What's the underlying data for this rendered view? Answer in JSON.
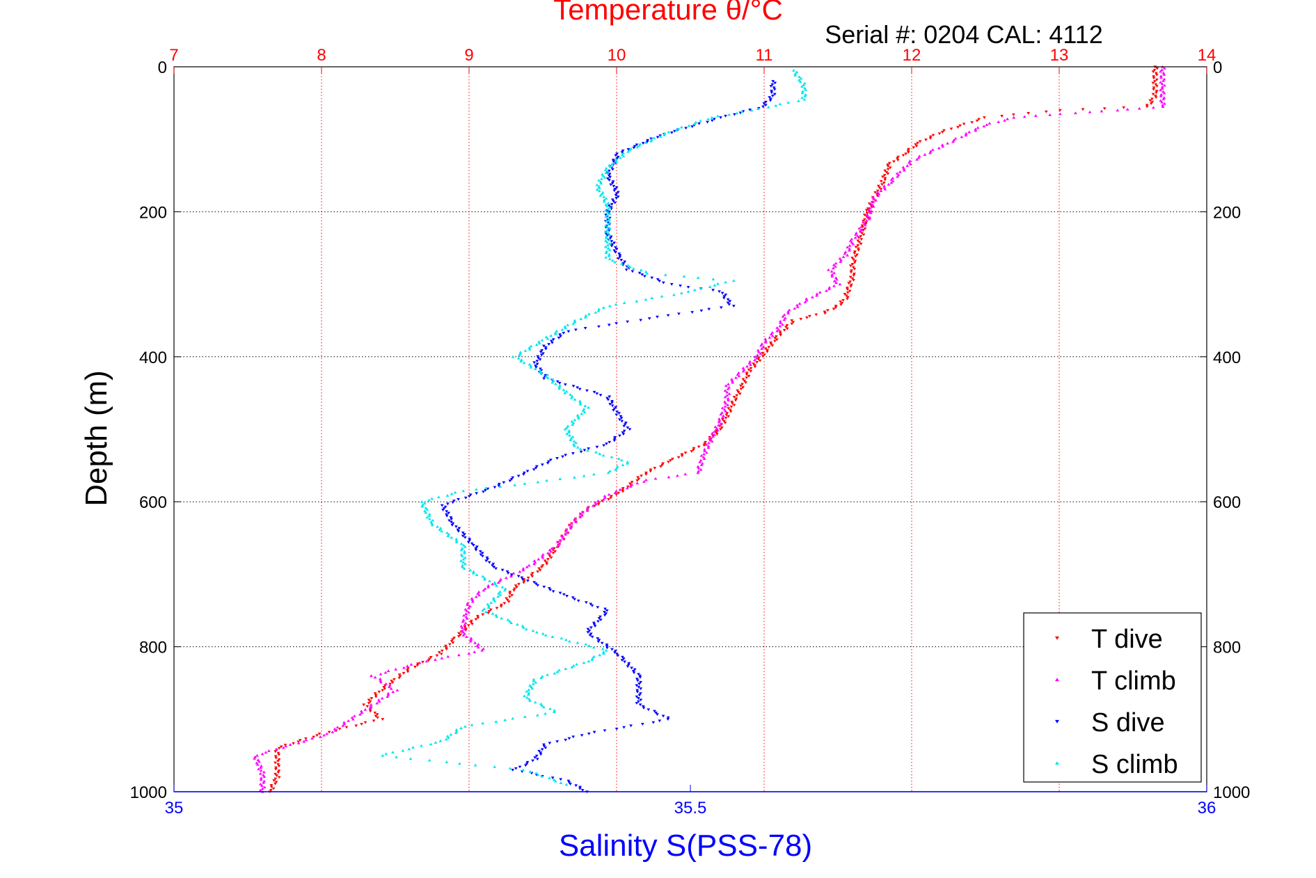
{
  "chart_data": {
    "type": "scatter",
    "title": "Temperature θ/°C",
    "subtitle": "Serial #: 0204  CAL: 4112",
    "xlabel_top": "Temperature θ/°C",
    "xlabel_bottom": "Salinity S(PSS-78)",
    "ylabel": "Depth (m)",
    "temperature_axis": {
      "min": 7,
      "max": 14,
      "ticks": [
        "7",
        "8",
        "9",
        "10",
        "11",
        "12",
        "13",
        "14"
      ]
    },
    "salinity_axis": {
      "min": 35,
      "max": 36,
      "ticks": [
        "35",
        "35.5",
        "36"
      ]
    },
    "depth_axis": {
      "min": 0,
      "max": 1000,
      "reversed": true,
      "ticks": [
        "0",
        "200",
        "400",
        "600",
        "800",
        "1000"
      ]
    },
    "grid": true,
    "legend_position": "bottom-right",
    "series": [
      {
        "name": "T dive",
        "axis": "temperature",
        "color": "#ff0000",
        "marker": "triangle-down",
        "points": [
          [
            13.65,
            0
          ],
          [
            13.65,
            20
          ],
          [
            13.65,
            40
          ],
          [
            13.6,
            55
          ],
          [
            13.0,
            60
          ],
          [
            12.5,
            70
          ],
          [
            12.2,
            90
          ],
          [
            12.05,
            105
          ],
          [
            11.95,
            120
          ],
          [
            11.85,
            135
          ],
          [
            11.8,
            160
          ],
          [
            11.75,
            180
          ],
          [
            11.7,
            200
          ],
          [
            11.65,
            240
          ],
          [
            11.6,
            270
          ],
          [
            11.6,
            290
          ],
          [
            11.55,
            320
          ],
          [
            11.5,
            330
          ],
          [
            11.4,
            340
          ],
          [
            11.2,
            350
          ],
          [
            11.1,
            370
          ],
          [
            11.0,
            395
          ],
          [
            10.9,
            420
          ],
          [
            10.85,
            440
          ],
          [
            10.8,
            460
          ],
          [
            10.75,
            480
          ],
          [
            10.7,
            500
          ],
          [
            10.6,
            520
          ],
          [
            10.35,
            545
          ],
          [
            10.2,
            560
          ],
          [
            10.0,
            590
          ],
          [
            9.8,
            610
          ],
          [
            9.7,
            630
          ],
          [
            9.6,
            660
          ],
          [
            9.5,
            690
          ],
          [
            9.3,
            720
          ],
          [
            9.25,
            740
          ],
          [
            9.05,
            760
          ],
          [
            8.9,
            790
          ],
          [
            8.8,
            810
          ],
          [
            8.6,
            830
          ],
          [
            8.4,
            860
          ],
          [
            8.3,
            880
          ],
          [
            8.4,
            900
          ],
          [
            8.0,
            920
          ],
          [
            7.7,
            940
          ],
          [
            7.7,
            960
          ],
          [
            7.7,
            980
          ],
          [
            7.65,
            1000
          ]
        ]
      },
      {
        "name": "T climb",
        "axis": "temperature",
        "color": "#ff00ff",
        "marker": "triangle-up",
        "points": [
          [
            13.7,
            0
          ],
          [
            13.7,
            30
          ],
          [
            13.7,
            55
          ],
          [
            13.4,
            60
          ],
          [
            13.0,
            65
          ],
          [
            12.7,
            70
          ],
          [
            12.5,
            80
          ],
          [
            12.4,
            90
          ],
          [
            12.2,
            110
          ],
          [
            12.0,
            130
          ],
          [
            11.85,
            160
          ],
          [
            11.75,
            180
          ],
          [
            11.7,
            210
          ],
          [
            11.6,
            240
          ],
          [
            11.55,
            260
          ],
          [
            11.45,
            280
          ],
          [
            11.5,
            300
          ],
          [
            11.3,
            320
          ],
          [
            11.15,
            340
          ],
          [
            11.1,
            360
          ],
          [
            11.0,
            380
          ],
          [
            10.95,
            400
          ],
          [
            10.85,
            420
          ],
          [
            10.75,
            440
          ],
          [
            10.75,
            460
          ],
          [
            10.7,
            490
          ],
          [
            10.65,
            510
          ],
          [
            10.6,
            530
          ],
          [
            10.55,
            560
          ],
          [
            10.2,
            570
          ],
          [
            9.95,
            590
          ],
          [
            9.8,
            610
          ],
          [
            9.7,
            630
          ],
          [
            9.6,
            660
          ],
          [
            9.4,
            690
          ],
          [
            9.1,
            720
          ],
          [
            9.0,
            740
          ],
          [
            8.95,
            780
          ],
          [
            9.1,
            805
          ],
          [
            8.7,
            820
          ],
          [
            8.35,
            840
          ],
          [
            8.5,
            860
          ],
          [
            8.35,
            880
          ],
          [
            8.2,
            900
          ],
          [
            8.05,
            920
          ],
          [
            7.55,
            950
          ],
          [
            7.6,
            975
          ],
          [
            7.6,
            1000
          ]
        ]
      },
      {
        "name": "S dive",
        "axis": "salinity",
        "color": "#0000ff",
        "marker": "triangle-down",
        "points": [
          [
            35.58,
            20
          ],
          [
            35.58,
            40
          ],
          [
            35.57,
            55
          ],
          [
            35.53,
            70
          ],
          [
            35.47,
            95
          ],
          [
            35.43,
            120
          ],
          [
            35.42,
            150
          ],
          [
            35.43,
            175
          ],
          [
            35.42,
            200
          ],
          [
            35.42,
            230
          ],
          [
            35.43,
            260
          ],
          [
            35.44,
            280
          ],
          [
            35.48,
            300
          ],
          [
            35.53,
            310
          ],
          [
            35.54,
            330
          ],
          [
            35.47,
            345
          ],
          [
            35.38,
            365
          ],
          [
            35.36,
            385
          ],
          [
            35.35,
            410
          ],
          [
            35.36,
            430
          ],
          [
            35.42,
            455
          ],
          [
            35.43,
            480
          ],
          [
            35.44,
            500
          ],
          [
            35.42,
            520
          ],
          [
            35.37,
            540
          ],
          [
            35.34,
            560
          ],
          [
            35.31,
            580
          ],
          [
            35.26,
            605
          ],
          [
            35.27,
            630
          ],
          [
            35.29,
            660
          ],
          [
            35.31,
            690
          ],
          [
            35.38,
            730
          ],
          [
            35.42,
            750
          ],
          [
            35.4,
            780
          ],
          [
            35.43,
            810
          ],
          [
            35.45,
            840
          ],
          [
            35.45,
            860
          ],
          [
            35.45,
            880
          ],
          [
            35.48,
            900
          ],
          [
            35.4,
            920
          ],
          [
            35.36,
            935
          ],
          [
            35.35,
            955
          ],
          [
            35.33,
            970
          ],
          [
            35.38,
            985
          ],
          [
            35.4,
            1000
          ]
        ]
      },
      {
        "name": "S climb",
        "axis": "salinity",
        "color": "#00e5ee",
        "marker": "triangle-up",
        "points": [
          [
            35.6,
            5
          ],
          [
            35.61,
            25
          ],
          [
            35.61,
            45
          ],
          [
            35.56,
            60
          ],
          [
            35.52,
            70
          ],
          [
            35.48,
            90
          ],
          [
            35.44,
            115
          ],
          [
            35.42,
            140
          ],
          [
            35.41,
            165
          ],
          [
            35.42,
            190
          ],
          [
            35.42,
            215
          ],
          [
            35.42,
            240
          ],
          [
            35.42,
            265
          ],
          [
            35.46,
            285
          ],
          [
            35.54,
            295
          ],
          [
            35.5,
            310
          ],
          [
            35.42,
            330
          ],
          [
            35.39,
            350
          ],
          [
            35.36,
            375
          ],
          [
            35.33,
            400
          ],
          [
            35.36,
            425
          ],
          [
            35.38,
            450
          ],
          [
            35.4,
            470
          ],
          [
            35.38,
            500
          ],
          [
            35.39,
            525
          ],
          [
            35.44,
            545
          ],
          [
            35.42,
            560
          ],
          [
            35.34,
            575
          ],
          [
            35.28,
            585
          ],
          [
            35.24,
            600
          ],
          [
            35.25,
            630
          ],
          [
            35.28,
            660
          ],
          [
            35.28,
            690
          ],
          [
            35.32,
            720
          ],
          [
            35.3,
            750
          ],
          [
            35.35,
            780
          ],
          [
            35.42,
            805
          ],
          [
            35.4,
            820
          ],
          [
            35.35,
            845
          ],
          [
            35.34,
            870
          ],
          [
            35.37,
            890
          ],
          [
            35.28,
            910
          ],
          [
            35.26,
            930
          ],
          [
            35.2,
            950
          ],
          [
            35.34,
            970
          ],
          [
            35.38,
            990
          ]
        ]
      }
    ]
  },
  "legend": {
    "items": [
      {
        "label": "T dive",
        "color": "#ff0000",
        "marker": "triangle-down"
      },
      {
        "label": "T climb",
        "color": "#ff00ff",
        "marker": "triangle-up"
      },
      {
        "label": "S dive",
        "color": "#0000ff",
        "marker": "triangle-down"
      },
      {
        "label": "S climb",
        "color": "#00e5ee",
        "marker": "triangle-up"
      }
    ]
  },
  "colors": {
    "temperature_axis": "#ff0000",
    "salinity_axis": "#0000ff",
    "grid_temperature": "#ff0000",
    "grid_depth": "#000000"
  }
}
